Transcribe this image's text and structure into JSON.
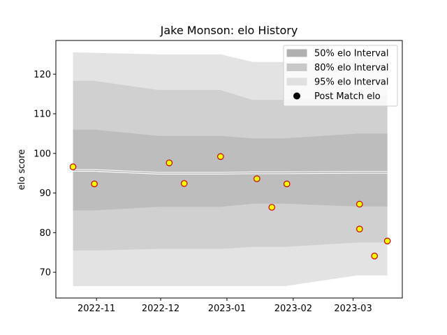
{
  "chart_data": {
    "type": "line",
    "title": "Jake Monson: elo History",
    "xlabel": "",
    "ylabel": "elo score",
    "ylim": [
      63.5,
      128.5
    ],
    "xlim": [
      "2022-10-13",
      "2023-03-24"
    ],
    "x_ticks": [
      {
        "date": "2022-11-01",
        "label": "2022-11"
      },
      {
        "date": "2022-12-01",
        "label": "2022-12"
      },
      {
        "date": "2023-01-01",
        "label": "2023-01"
      },
      {
        "date": "2023-02-01",
        "label": "2023-02"
      },
      {
        "date": "2023-03-01",
        "label": "2023-03"
      }
    ],
    "y_ticks": [
      70,
      80,
      90,
      100,
      110,
      120
    ],
    "grid": false,
    "legend_position": "top-right",
    "bands": [
      {
        "name": "95% elo Interval",
        "color": "#e3e3e3",
        "x": [
          "2022-10-21",
          "2022-11-30",
          "2022-12-29",
          "2023-01-13",
          "2023-01-28",
          "2023-03-03",
          "2023-03-17"
        ],
        "upper": [
          125.5,
          125.0,
          125.0,
          123.1,
          123.1,
          124.5,
          124.5
        ],
        "lower": [
          66.5,
          66.5,
          66.5,
          66.5,
          66.5,
          69.2,
          69.2
        ]
      },
      {
        "name": "80% elo Interval",
        "color": "#d0d0d0",
        "x": [
          "2022-10-21",
          "2022-10-31",
          "2022-11-30",
          "2022-12-29",
          "2023-01-13",
          "2023-01-28",
          "2023-03-03",
          "2023-03-17"
        ],
        "upper": [
          118.3,
          118.3,
          116.0,
          116.0,
          113.5,
          113.5,
          114.5,
          114.5
        ],
        "lower": [
          75.5,
          75.5,
          75.9,
          75.9,
          76.4,
          76.4,
          77.5,
          77.5
        ]
      },
      {
        "name": "50% elo Interval",
        "color": "#bdbdbd",
        "x": [
          "2022-10-21",
          "2022-10-31",
          "2022-11-30",
          "2022-12-29",
          "2023-01-13",
          "2023-01-28",
          "2023-03-03",
          "2023-03-17"
        ],
        "upper": [
          106.0,
          106.0,
          104.4,
          104.4,
          103.8,
          103.8,
          105.0,
          105.0
        ],
        "lower": [
          85.6,
          85.6,
          86.5,
          86.5,
          87.3,
          87.3,
          86.6,
          86.6
        ]
      }
    ],
    "mean_line": {
      "x": [
        "2022-10-21",
        "2022-10-31",
        "2022-11-30",
        "2022-12-29",
        "2023-01-13",
        "2023-01-28",
        "2023-03-03",
        "2023-03-17"
      ],
      "values": [
        95.7,
        95.7,
        95.0,
        95.0,
        95.1,
        95.1,
        95.2,
        95.2
      ]
    },
    "series": [
      {
        "name": "Post Match elo",
        "marker_fill": "#ffff00",
        "marker_edge": "#cc0000",
        "points": [
          {
            "x": "2022-10-21",
            "y": 96.6
          },
          {
            "x": "2022-10-31",
            "y": 92.3
          },
          {
            "x": "2022-12-05",
            "y": 97.6
          },
          {
            "x": "2022-12-12",
            "y": 92.4
          },
          {
            "x": "2022-12-29",
            "y": 99.2
          },
          {
            "x": "2023-01-15",
            "y": 93.6
          },
          {
            "x": "2023-01-22",
            "y": 86.4
          },
          {
            "x": "2023-01-29",
            "y": 92.3
          },
          {
            "x": "2023-03-04",
            "y": 87.2
          },
          {
            "x": "2023-03-04",
            "y": 80.9
          },
          {
            "x": "2023-03-11",
            "y": 74.1
          },
          {
            "x": "2023-03-17",
            "y": 77.9
          }
        ]
      }
    ],
    "legend": [
      {
        "label": "50% elo Interval",
        "kind": "patch",
        "color": "#b0b0b0"
      },
      {
        "label": "80% elo Interval",
        "kind": "patch",
        "color": "#c8c8c8"
      },
      {
        "label": "95% elo Interval",
        "kind": "patch",
        "color": "#e0e0e0"
      },
      {
        "label": "Post Match elo",
        "kind": "marker",
        "color": "#000000"
      }
    ]
  }
}
